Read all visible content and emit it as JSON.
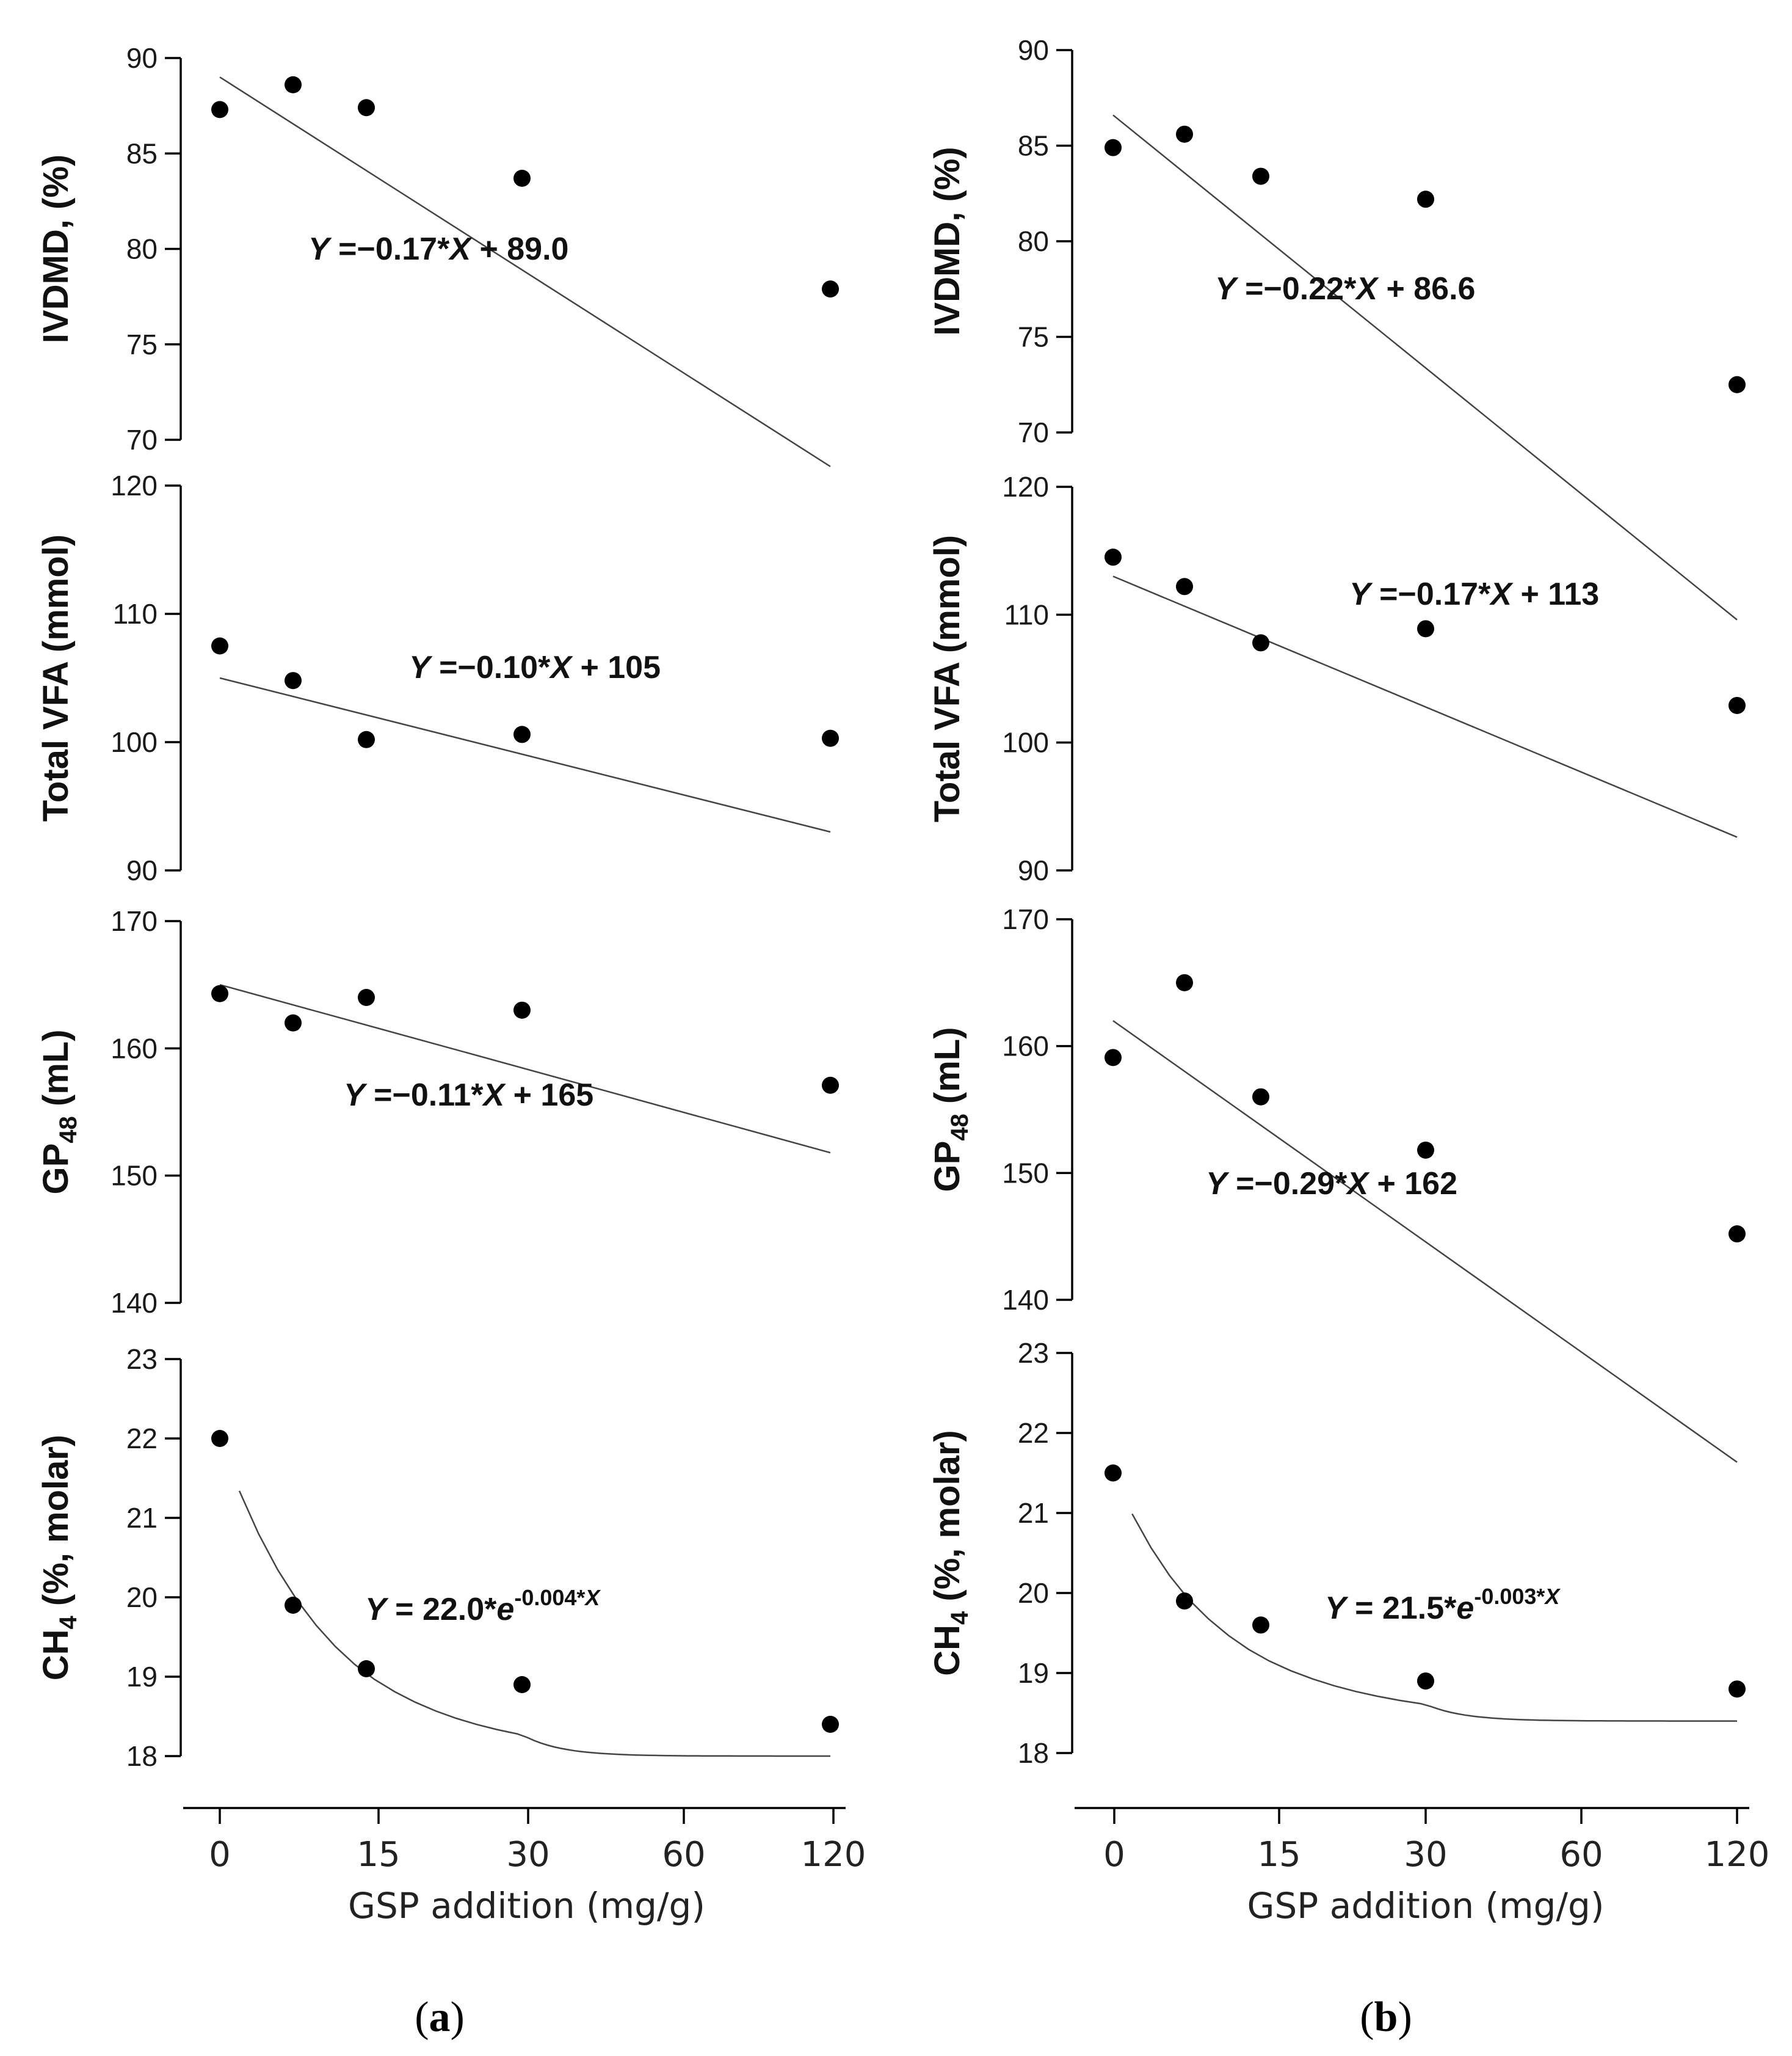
{
  "chart_data": [
    {
      "type": "scatter",
      "id": "a-ivdmd",
      "panel": "a",
      "ylabel": "IVDMD, (%)",
      "ylim": [
        70,
        90
      ],
      "yticks": [
        70,
        75,
        80,
        85,
        90
      ],
      "x": [
        0,
        7.5,
        15,
        30,
        120
      ],
      "x_labels": [
        "0",
        "",
        "15",
        "30",
        "120"
      ],
      "values": [
        87.3,
        88.6,
        87.4,
        83.7,
        77.9
      ],
      "fit": {
        "kind": "linear",
        "slope": -0.17,
        "intercept": 89.0
      },
      "equation": {
        "text": "Y = −0.17*X + 89.0",
        "Y": "Y",
        "mid": " =−0.17*",
        "X": "X",
        "tail": " + 89.0"
      }
    },
    {
      "type": "scatter",
      "id": "a-vfa",
      "panel": "a",
      "ylabel": "Total VFA (mmol)",
      "ylim": [
        90,
        120
      ],
      "yticks": [
        90,
        100,
        110,
        120
      ],
      "x": [
        0,
        7.5,
        15,
        30,
        120
      ],
      "values": [
        107.5,
        104.8,
        100.2,
        100.6,
        100.3
      ],
      "fit": {
        "kind": "linear",
        "slope": -0.1,
        "intercept": 105
      },
      "equation": {
        "text": "Y = −0.10*X + 105",
        "Y": "Y",
        "mid": " =−0.10*",
        "X": "X",
        "tail": " + 105"
      }
    },
    {
      "type": "scatter",
      "id": "a-gp48",
      "panel": "a",
      "ylabel": "GP48 (mL)",
      "ylabel_main": "GP",
      "ylabel_sub": "48",
      "ylabel_tail": " (mL)",
      "ylim": [
        140,
        170
      ],
      "yticks": [
        140,
        150,
        160,
        170
      ],
      "x": [
        0,
        7.5,
        15,
        30,
        120
      ],
      "values": [
        164.3,
        162.0,
        164.0,
        163.0,
        157.1
      ],
      "fit": {
        "kind": "linear",
        "slope": -0.11,
        "intercept": 165
      },
      "equation": {
        "text": "Y = −0.11*X + 165",
        "Y": "Y",
        "mid": " =−0.11*",
        "X": "X",
        "tail": " + 165"
      }
    },
    {
      "type": "scatter",
      "id": "a-ch4",
      "panel": "a",
      "ylabel": "CH4 (%, molar)",
      "ylabel_main": "CH",
      "ylabel_sub": "4",
      "ylabel_tail": " (%, molar)",
      "ylim": [
        18,
        23
      ],
      "yticks": [
        18,
        19,
        20,
        21,
        22,
        23
      ],
      "x": [
        0,
        7.5,
        15,
        30,
        120
      ],
      "values": [
        22.0,
        19.9,
        19.1,
        18.9,
        18.4
      ],
      "fit": {
        "kind": "exponential",
        "a": 22.0,
        "b": -0.004
      },
      "equation": {
        "text": "Y = 22.0*e^-0.004*X",
        "Y": "Y",
        "mid": " = 22.0*",
        "e": "e",
        "exp": "-0.004*",
        "X": "X"
      },
      "xlabel": "GSP addition (mg/g)",
      "xticks": [
        "0",
        "15",
        "30",
        "60",
        "120"
      ]
    },
    {
      "type": "scatter",
      "id": "b-ivdmd",
      "panel": "b",
      "ylabel": "IVDMD, (%)",
      "ylim": [
        70,
        90
      ],
      "yticks": [
        70,
        75,
        80,
        85,
        90
      ],
      "x": [
        0,
        7.5,
        15,
        30,
        120
      ],
      "values": [
        84.9,
        85.6,
        83.4,
        82.2,
        72.5
      ],
      "fit": {
        "kind": "linear",
        "slope": -0.22,
        "intercept": 86.6
      },
      "equation": {
        "text": "Y = −0.22*X + 86.6",
        "Y": "Y",
        "mid": " =−0.22*",
        "X": "X",
        "tail": " + 86.6"
      }
    },
    {
      "type": "scatter",
      "id": "b-vfa",
      "panel": "b",
      "ylabel": "Total VFA (mmol)",
      "ylim": [
        90,
        120
      ],
      "yticks": [
        90,
        100,
        110,
        120
      ],
      "x": [
        0,
        7.5,
        15,
        30,
        120
      ],
      "values": [
        114.5,
        112.2,
        107.8,
        108.9,
        102.9
      ],
      "fit": {
        "kind": "linear",
        "slope": -0.17,
        "intercept": 113
      },
      "equation": {
        "text": "Y = −0.17*X + 113",
        "Y": "Y",
        "mid": " =−0.17*",
        "X": "X",
        "tail": " + 113"
      }
    },
    {
      "type": "scatter",
      "id": "b-gp48",
      "panel": "b",
      "ylabel": "GP48 (mL)",
      "ylabel_main": "GP",
      "ylabel_sub": "48",
      "ylabel_tail": " (mL)",
      "ylim": [
        140,
        170
      ],
      "yticks": [
        140,
        150,
        160,
        170
      ],
      "x": [
        0,
        7.5,
        15,
        30,
        120
      ],
      "values": [
        159.1,
        165.0,
        156.0,
        151.8,
        145.2
      ],
      "fit": {
        "kind": "linear",
        "slope": -0.29,
        "intercept": 162
      },
      "equation": {
        "text": "Y = −0.29*X + 162",
        "Y": "Y",
        "mid": " =−0.29*",
        "X": "X",
        "tail": " + 162"
      }
    },
    {
      "type": "scatter",
      "id": "b-ch4",
      "panel": "b",
      "ylabel": "CH4 (%, molar)",
      "ylabel_main": "CH",
      "ylabel_sub": "4",
      "ylabel_tail": " (%, molar)",
      "ylim": [
        18,
        23
      ],
      "yticks": [
        18,
        19,
        20,
        21,
        22,
        23
      ],
      "x": [
        0,
        7.5,
        15,
        30,
        120
      ],
      "values": [
        21.5,
        19.9,
        19.6,
        18.9,
        18.8
      ],
      "fit": {
        "kind": "exponential",
        "a": 21.5,
        "b": -0.003
      },
      "equation": {
        "text": "Y = 21.5*e^-0.003*X",
        "Y": "Y",
        "mid": " = 21.5*",
        "e": "e",
        "exp": "-0.003*",
        "X": "X"
      },
      "xlabel": "GSP addition (mg/g)",
      "xticks": [
        "0",
        "15",
        "30",
        "60",
        "120"
      ]
    }
  ],
  "panels": {
    "a": {
      "open": "(",
      "letter": "a",
      "close": ")"
    },
    "b": {
      "open": "(",
      "letter": "b",
      "close": ")"
    }
  }
}
